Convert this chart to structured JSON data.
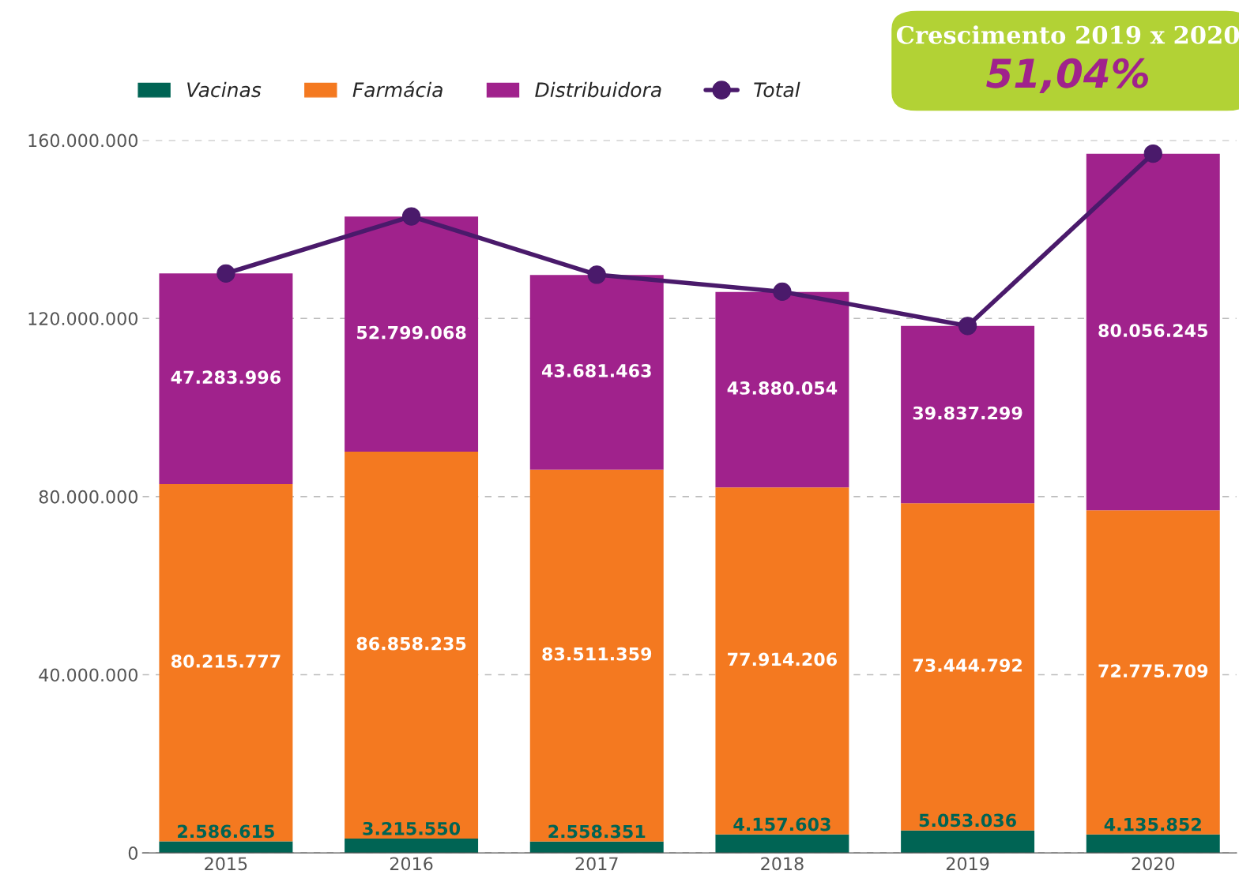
{
  "chart_data": {
    "type": "bar",
    "stacked": true,
    "categories": [
      "2015",
      "2016",
      "2017",
      "2018",
      "2019",
      "2020"
    ],
    "series": [
      {
        "name": "Vacinas",
        "color": "#006454",
        "values": [
          2586615,
          3215550,
          2558351,
          4157603,
          5053036,
          4135852
        ],
        "value_labels": [
          "2.586.615",
          "3.215.550",
          "2.558.351",
          "4.157.603",
          "5.053.036",
          "4.135.852"
        ]
      },
      {
        "name": "Farmácia",
        "color": "#f47920",
        "values": [
          80215777,
          86858235,
          83511359,
          77914206,
          73444792,
          72775709
        ],
        "value_labels": [
          "80.215.777",
          "86.858.235",
          "83.511.359",
          "77.914.206",
          "73.444.792",
          "72.775.709"
        ]
      },
      {
        "name": "Distribuidora",
        "color": "#a0228c",
        "values": [
          47283996,
          52799068,
          43681463,
          43880054,
          39837299,
          80056245
        ],
        "value_labels": [
          "47.283.996",
          "52.799.068",
          "43.681.463",
          "43.880.054",
          "39.837.299",
          "80.056.245"
        ]
      },
      {
        "name": "Total",
        "type": "line",
        "color": "#4a1a6b",
        "marker": "circle",
        "values": [
          130100000,
          142900000,
          129800000,
          126000000,
          118300000,
          157000000
        ]
      }
    ],
    "ylim": [
      0,
      160000000
    ],
    "yticks": [
      0,
      {
        "value": 40000000,
        "label": "40.000.000"
      },
      {
        "value": 80000000,
        "label": "80.000.000"
      },
      {
        "value": 120000000,
        "label": "120.000.000"
      },
      {
        "value": 160000000,
        "label": "160.000.000"
      }
    ],
    "grid": "y",
    "legend": "top",
    "annotations": [
      "Crescimento 2019 x 2020",
      "51,04%"
    ]
  }
}
